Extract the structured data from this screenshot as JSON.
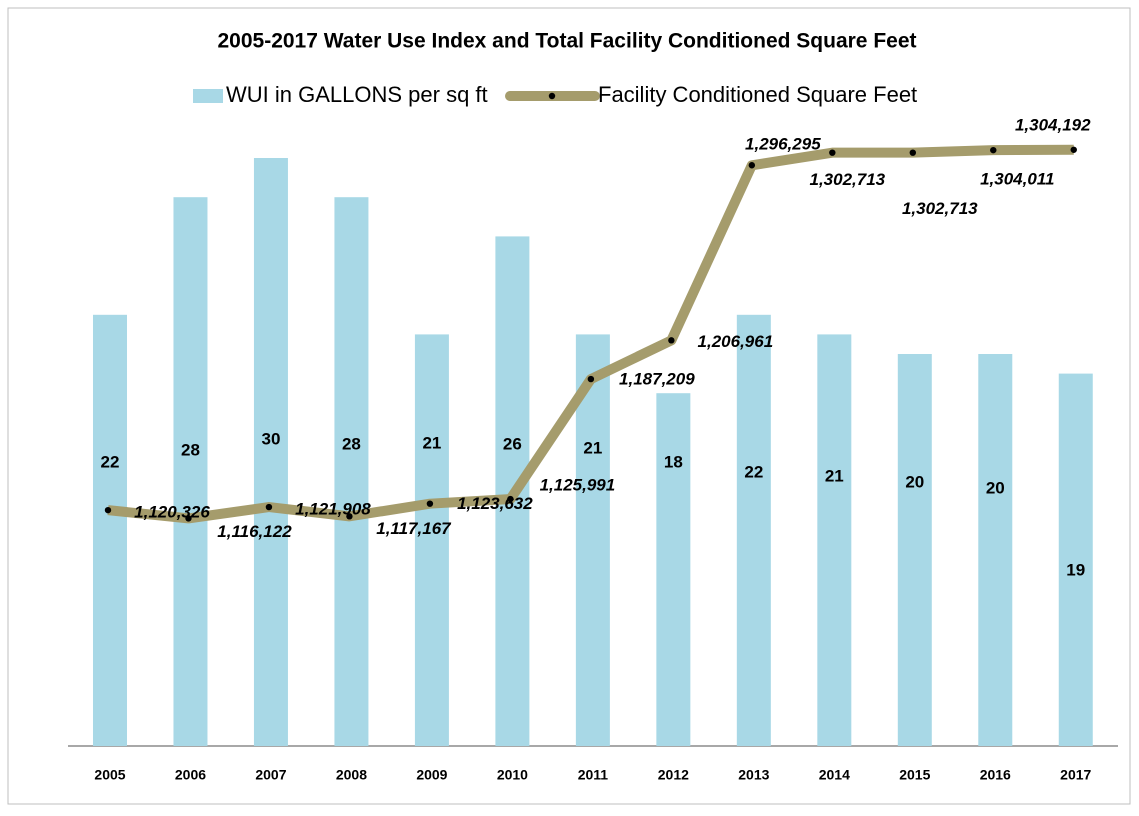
{
  "chart_data": {
    "type": "bar_line",
    "title": "2005-2017 Water Use Index and Total Facility Conditioned Square Feet",
    "categories": [
      "2005",
      "2006",
      "2007",
      "2008",
      "2009",
      "2010",
      "2011",
      "2012",
      "2013",
      "2014",
      "2015",
      "2016",
      "2017"
    ],
    "series": [
      {
        "name": "WUI in GALLONS per sq ft",
        "type": "bar",
        "color": "#a8d8e6",
        "values": [
          22,
          28,
          30,
          28,
          21,
          26,
          21,
          18,
          22,
          21,
          20,
          20,
          19
        ]
      },
      {
        "name": "Facility Conditioned Square Feet",
        "type": "line",
        "axis": "y2",
        "color": "#a59c6c",
        "values": [
          1120326,
          1116122,
          1121908,
          1117167,
          1123632,
          1125991,
          1187209,
          1206961,
          1296295,
          1302713,
          1302713,
          1304011,
          1304192
        ],
        "value_labels": [
          "1,120,326",
          "1,116,122",
          "1,121,908",
          "1,117,167",
          "1,123,632",
          "1,125,991",
          "1,187,209",
          "1,206,961",
          "1,296,295",
          "1,302,713",
          "1,302,713",
          "1,304,011",
          "1,304,192"
        ]
      }
    ],
    "ylim": [
      0,
      35
    ],
    "y2lim": [
      1000000,
      1350000
    ],
    "legend": "top"
  }
}
